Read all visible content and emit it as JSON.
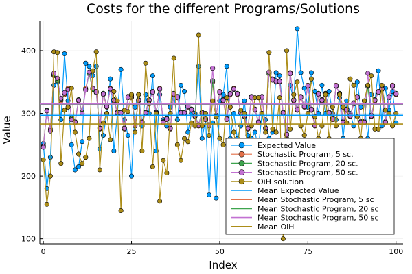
{
  "chart_data": {
    "type": "line",
    "title": "Costs for the different Programs/Solutions",
    "xlabel": "Index",
    "ylabel": "Value",
    "xlim": [
      -1,
      102
    ],
    "ylim": [
      92,
      448
    ],
    "xticks": [
      0,
      25,
      50,
      75,
      100
    ],
    "yticks": [
      100,
      200,
      300,
      400
    ],
    "grid": true,
    "legend_position": "bottom-right",
    "series": [
      {
        "name": "Expected Value",
        "color": "#009AFA",
        "marker": true,
        "values": [
          252,
          180,
          230,
          345,
          350,
          290,
          395,
          320,
          250,
          210,
          215,
          255,
          380,
          375,
          360,
          375,
          243,
          265,
          300,
          355,
          240,
          300,
          370,
          290,
          265,
          200,
          310,
          330,
          280,
          330,
          300,
          360,
          240,
          330,
          290,
          280,
          310,
          330,
          290,
          345,
          335,
          270,
          300,
          300,
          375,
          260,
          290,
          170,
          285,
          165,
          320,
          330,
          375,
          260,
          300,
          260,
          280,
          320,
          265,
          260,
          270,
          245,
          300,
          290,
          260,
          270,
          365,
          360,
          300,
          260,
          345,
          320,
          435,
          365,
          340,
          310,
          365,
          335,
          300,
          345,
          300,
          335,
          300,
          290,
          325,
          260,
          320,
          300,
          280,
          350,
          310,
          320,
          260,
          330,
          320,
          368,
          280,
          340,
          305,
          335,
          285
        ]
      },
      {
        "name": "Stochastic Program, 5 sc.",
        "color": "#E36F47",
        "marker": true,
        "values": [
          248,
          305,
          275,
          360,
          355,
          320,
          330,
          340,
          290,
          285,
          320,
          300,
          340,
          365,
          340,
          335,
          275,
          330,
          310,
          340,
          320,
          300,
          300,
          275,
          325,
          325,
          280,
          320,
          285,
          300,
          320,
          335,
          300,
          340,
          285,
          290,
          275,
          330,
          325,
          300,
          300,
          310,
          305,
          295,
          280,
          300,
          290,
          280,
          350,
          295,
          335,
          320,
          290,
          330,
          340,
          330,
          300,
          295,
          275,
          325,
          305,
          285,
          325,
          275,
          365,
          355,
          350,
          350,
          300,
          265,
          365,
          320,
          305,
          325,
          310,
          345,
          305,
          280,
          330,
          320,
          330,
          300,
          290,
          345,
          330,
          285,
          305,
          295,
          315,
          325,
          285,
          285,
          345,
          295,
          320,
          335,
          340,
          285,
          325,
          345,
          330
        ]
      },
      {
        "name": "Stochastic Program, 20 sc.",
        "color": "#3EA44E",
        "marker": true,
        "values": [
          247,
          305,
          272,
          362,
          352,
          322,
          332,
          338,
          292,
          287,
          322,
          302,
          338,
          363,
          338,
          333,
          277,
          332,
          312,
          338,
          322,
          302,
          302,
          277,
          327,
          327,
          282,
          322,
          287,
          302,
          322,
          333,
          302,
          338,
          287,
          292,
          277,
          332,
          327,
          302,
          302,
          312,
          307,
          297,
          282,
          302,
          292,
          282,
          352,
          297,
          333,
          322,
          292,
          332,
          338,
          332,
          302,
          297,
          277,
          327,
          307,
          287,
          327,
          277,
          363,
          353,
          352,
          352,
          302,
          267,
          363,
          322,
          307,
          327,
          312,
          343,
          307,
          282,
          332,
          322,
          332,
          302,
          292,
          343,
          332,
          287,
          307,
          297,
          317,
          327,
          287,
          287,
          343,
          297,
          322,
          333,
          338,
          287,
          327,
          343,
          332
        ]
      },
      {
        "name": "Stochastic Program, 50 sc.",
        "color": "#C271D2",
        "marker": true,
        "values": [
          246,
          304,
          272,
          364,
          356,
          324,
          333,
          338,
          290,
          286,
          321,
          300,
          337,
          366,
          340,
          334,
          276,
          331,
          311,
          339,
          321,
          301,
          301,
          276,
          326,
          328,
          281,
          321,
          286,
          301,
          321,
          334,
          301,
          339,
          286,
          291,
          276,
          331,
          326,
          301,
          301,
          311,
          306,
          296,
          281,
          301,
          291,
          281,
          372,
          296,
          334,
          321,
          291,
          331,
          339,
          331,
          301,
          296,
          276,
          326,
          306,
          286,
          326,
          276,
          366,
          354,
          351,
          351,
          301,
          266,
          364,
          321,
          306,
          326,
          311,
          344,
          306,
          281,
          331,
          321,
          331,
          301,
          291,
          344,
          331,
          286,
          306,
          296,
          316,
          326,
          286,
          286,
          364,
          296,
          321,
          334,
          339,
          286,
          326,
          344,
          331
        ]
      },
      {
        "name": "OiH solution",
        "color": "#AC8D18",
        "marker": true,
        "values": [
          226,
          155,
          200,
          398,
          397,
          220,
          305,
          310,
          340,
          270,
          235,
          220,
          230,
          260,
          368,
          398,
          210,
          285,
          300,
          258,
          335,
          320,
          145,
          305,
          303,
          330,
          270,
          330,
          240,
          380,
          315,
          215,
          300,
          160,
          225,
          205,
          300,
          388,
          250,
          225,
          260,
          255,
          285,
          280,
          425,
          280,
          300,
          265,
          320,
          295,
          260,
          250,
          325,
          310,
          270,
          230,
          305,
          300,
          230,
          280,
          325,
          325,
          300,
          270,
          397,
          275,
          270,
          325,
          100,
          400,
          275,
          330,
          350,
          280,
          265,
          300,
          355,
          295,
          260,
          280,
          330,
          260,
          310,
          280,
          330,
          310,
          285,
          355,
          345,
          295,
          260,
          320,
          345,
          360,
          275,
          275,
          345,
          305,
          300,
          280,
          300
        ]
      },
      {
        "name": "Mean Expected Value",
        "color": "#009AFA",
        "marker": false,
        "hline": 297
      },
      {
        "name": "Mean Stochastic Program, 5 sc",
        "color": "#E36F47",
        "marker": false,
        "hline": 314
      },
      {
        "name": "Mean Stochastic Program, 20 sc",
        "color": "#3EA44E",
        "marker": false,
        "hline": 314
      },
      {
        "name": "Mean Stochastic Program, 50 sc",
        "color": "#C271D2",
        "marker": false,
        "hline": 315
      },
      {
        "name": "Mean OiH",
        "color": "#AC8D18",
        "marker": false,
        "hline": 283
      }
    ]
  }
}
